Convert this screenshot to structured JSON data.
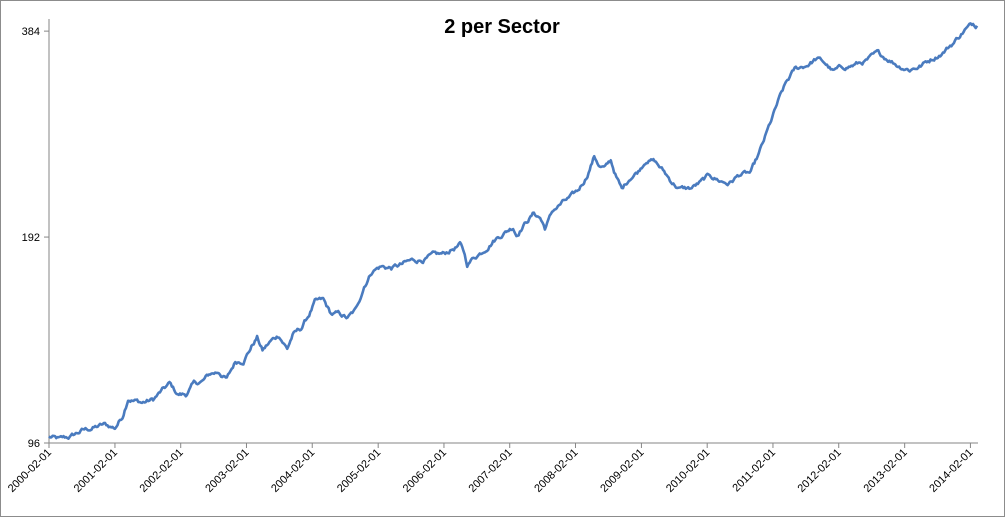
{
  "chart_data": {
    "type": "line",
    "title": "2 per Sector",
    "xlabel": "",
    "ylabel": "",
    "y_scale": "log2",
    "ylim": [
      96,
      400
    ],
    "y_ticks": [
      "96",
      "192",
      "384"
    ],
    "y_tick_values": [
      96,
      192,
      384
    ],
    "gridlines": false,
    "legend": "none",
    "x_ticks": [
      "2000-02-01",
      "2001-02-01",
      "2002-02-01",
      "2003-02-01",
      "2004-02-01",
      "2005-02-01",
      "2006-02-01",
      "2007-02-01",
      "2008-02-01",
      "2009-02-01",
      "2010-02-01",
      "2011-02-01",
      "2012-02-01",
      "2013-02-01",
      "2014-02-01"
    ],
    "x_range": [
      "2000-02-01",
      "2014-03-15"
    ],
    "series": [
      {
        "color": "#4a7bbf",
        "points": [
          [
            "2000-02-01",
            98
          ],
          [
            "2000-04-01",
            97
          ],
          [
            "2000-06-01",
            98
          ],
          [
            "2000-08-01",
            100
          ],
          [
            "2000-10-01",
            101
          ],
          [
            "2000-12-01",
            102
          ],
          [
            "2001-02-01",
            101
          ],
          [
            "2001-03-15",
            105
          ],
          [
            "2001-04-15",
            112
          ],
          [
            "2001-05-15",
            111
          ],
          [
            "2001-07-01",
            110
          ],
          [
            "2001-09-01",
            111
          ],
          [
            "2001-10-15",
            114
          ],
          [
            "2001-12-01",
            117
          ],
          [
            "2002-01-15",
            113
          ],
          [
            "2002-03-01",
            113
          ],
          [
            "2002-04-15",
            117
          ],
          [
            "2002-06-01",
            118
          ],
          [
            "2002-07-15",
            121
          ],
          [
            "2002-09-01",
            122
          ],
          [
            "2002-10-15",
            119
          ],
          [
            "2002-12-01",
            126
          ],
          [
            "2003-01-15",
            127
          ],
          [
            "2003-03-01",
            133
          ],
          [
            "2003-04-01",
            137
          ],
          [
            "2003-05-01",
            131
          ],
          [
            "2003-06-15",
            135
          ],
          [
            "2003-08-01",
            138
          ],
          [
            "2003-09-15",
            132
          ],
          [
            "2003-10-15",
            138
          ],
          [
            "2003-12-01",
            141
          ],
          [
            "2004-01-15",
            148
          ],
          [
            "2004-02-15",
            154
          ],
          [
            "2004-04-01",
            155
          ],
          [
            "2004-05-15",
            148
          ],
          [
            "2004-07-01",
            148
          ],
          [
            "2004-08-15",
            146
          ],
          [
            "2004-10-01",
            150
          ],
          [
            "2004-11-15",
            163
          ],
          [
            "2005-01-01",
            172
          ],
          [
            "2005-02-15",
            174
          ],
          [
            "2005-04-15",
            173
          ],
          [
            "2005-06-15",
            175
          ],
          [
            "2005-08-01",
            177
          ],
          [
            "2005-10-01",
            178
          ],
          [
            "2005-12-01",
            180
          ],
          [
            "2006-02-01",
            181
          ],
          [
            "2006-03-15",
            184
          ],
          [
            "2006-05-01",
            187
          ],
          [
            "2006-05-20",
            183
          ],
          [
            "2006-06-10",
            175
          ],
          [
            "2006-07-15",
            179
          ],
          [
            "2006-09-01",
            183
          ],
          [
            "2006-11-01",
            190
          ],
          [
            "2007-01-01",
            195
          ],
          [
            "2007-02-20",
            199
          ],
          [
            "2007-03-10",
            194
          ],
          [
            "2007-05-01",
            202
          ],
          [
            "2007-06-15",
            208
          ],
          [
            "2007-07-20",
            205
          ],
          [
            "2007-08-15",
            198
          ],
          [
            "2007-10-01",
            210
          ],
          [
            "2007-11-15",
            215
          ],
          [
            "2008-01-15",
            220
          ],
          [
            "2008-02-15",
            224
          ],
          [
            "2008-04-01",
            235
          ],
          [
            "2008-05-15",
            252
          ],
          [
            "2008-06-15",
            244
          ],
          [
            "2008-07-15",
            242
          ],
          [
            "2008-08-15",
            248
          ],
          [
            "2008-09-15",
            235
          ],
          [
            "2008-10-15",
            225
          ],
          [
            "2008-12-01",
            235
          ],
          [
            "2009-01-15",
            240
          ],
          [
            "2009-03-01",
            250
          ],
          [
            "2009-04-15",
            248
          ],
          [
            "2009-06-01",
            240
          ],
          [
            "2009-07-15",
            232
          ],
          [
            "2009-09-01",
            226
          ],
          [
            "2009-11-01",
            226
          ],
          [
            "2010-01-01",
            231
          ],
          [
            "2010-02-15",
            236
          ],
          [
            "2010-04-15",
            232
          ],
          [
            "2010-06-01",
            230
          ],
          [
            "2010-08-01",
            237
          ],
          [
            "2010-10-01",
            238
          ],
          [
            "2010-11-15",
            253
          ],
          [
            "2011-01-15",
            280
          ],
          [
            "2011-03-01",
            302
          ],
          [
            "2011-04-15",
            322
          ],
          [
            "2011-06-01",
            337
          ],
          [
            "2011-08-01",
            342
          ],
          [
            "2011-10-01",
            350
          ],
          [
            "2011-11-15",
            345
          ],
          [
            "2012-01-01",
            335
          ],
          [
            "2012-03-01",
            340
          ],
          [
            "2012-05-01",
            343
          ],
          [
            "2012-07-01",
            347
          ],
          [
            "2012-09-01",
            355
          ],
          [
            "2012-11-01",
            350
          ],
          [
            "2013-01-01",
            342
          ],
          [
            "2013-03-01",
            338
          ],
          [
            "2013-05-01",
            342
          ],
          [
            "2013-07-01",
            350
          ],
          [
            "2013-09-01",
            358
          ],
          [
            "2013-11-01",
            370
          ],
          [
            "2014-01-01",
            386
          ],
          [
            "2014-02-15",
            393
          ],
          [
            "2014-03-10",
            391
          ]
        ]
      }
    ]
  }
}
